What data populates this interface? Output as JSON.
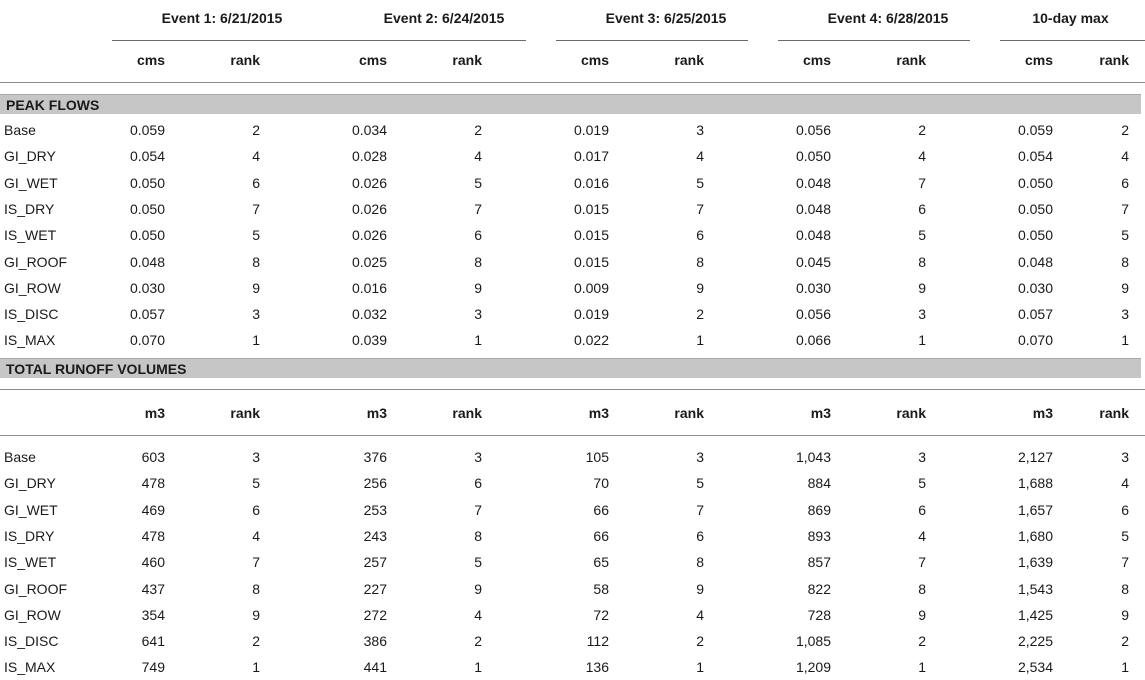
{
  "events": [
    {
      "title": "Event 1: 6/21/2015"
    },
    {
      "title": "Event 2: 6/24/2015"
    },
    {
      "title": "Event 3: 6/25/2015"
    },
    {
      "title": "Event 4: 6/28/2015"
    },
    {
      "title": "10-day max"
    }
  ],
  "peak": {
    "section_title": "PEAK FLOWS",
    "unit_label": "cms",
    "rank_label": "rank",
    "rows": [
      {
        "label": "Base",
        "cells": [
          "0.059",
          "2",
          "0.034",
          "2",
          "0.019",
          "3",
          "0.056",
          "2",
          "0.059",
          "2"
        ]
      },
      {
        "label": "GI_DRY",
        "cells": [
          "0.054",
          "4",
          "0.028",
          "4",
          "0.017",
          "4",
          "0.050",
          "4",
          "0.054",
          "4"
        ]
      },
      {
        "label": "GI_WET",
        "cells": [
          "0.050",
          "6",
          "0.026",
          "5",
          "0.016",
          "5",
          "0.048",
          "7",
          "0.050",
          "6"
        ]
      },
      {
        "label": "IS_DRY",
        "cells": [
          "0.050",
          "7",
          "0.026",
          "7",
          "0.015",
          "7",
          "0.048",
          "6",
          "0.050",
          "7"
        ]
      },
      {
        "label": "IS_WET",
        "cells": [
          "0.050",
          "5",
          "0.026",
          "6",
          "0.015",
          "6",
          "0.048",
          "5",
          "0.050",
          "5"
        ]
      },
      {
        "label": "GI_ROOF",
        "cells": [
          "0.048",
          "8",
          "0.025",
          "8",
          "0.015",
          "8",
          "0.045",
          "8",
          "0.048",
          "8"
        ]
      },
      {
        "label": "GI_ROW",
        "cells": [
          "0.030",
          "9",
          "0.016",
          "9",
          "0.009",
          "9",
          "0.030",
          "9",
          "0.030",
          "9"
        ]
      },
      {
        "label": "IS_DISC",
        "cells": [
          "0.057",
          "3",
          "0.032",
          "3",
          "0.019",
          "2",
          "0.056",
          "3",
          "0.057",
          "3"
        ]
      },
      {
        "label": "IS_MAX",
        "cells": [
          "0.070",
          "1",
          "0.039",
          "1",
          "0.022",
          "1",
          "0.066",
          "1",
          "0.070",
          "1"
        ]
      }
    ]
  },
  "volume": {
    "section_title": "TOTAL RUNOFF VOLUMES",
    "unit_label": "m3",
    "rank_label": "rank",
    "rows": [
      {
        "label": "Base",
        "cells": [
          "603",
          "3",
          "376",
          "3",
          "105",
          "3",
          "1,043",
          "3",
          "2,127",
          "3"
        ]
      },
      {
        "label": "GI_DRY",
        "cells": [
          "478",
          "5",
          "256",
          "6",
          "70",
          "5",
          "884",
          "5",
          "1,688",
          "4"
        ]
      },
      {
        "label": "GI_WET",
        "cells": [
          "469",
          "6",
          "253",
          "7",
          "66",
          "7",
          "869",
          "6",
          "1,657",
          "6"
        ]
      },
      {
        "label": "IS_DRY",
        "cells": [
          "478",
          "4",
          "243",
          "8",
          "66",
          "6",
          "893",
          "4",
          "1,680",
          "5"
        ]
      },
      {
        "label": "IS_WET",
        "cells": [
          "460",
          "7",
          "257",
          "5",
          "65",
          "8",
          "857",
          "7",
          "1,639",
          "7"
        ]
      },
      {
        "label": "GI_ROOF",
        "cells": [
          "437",
          "8",
          "227",
          "9",
          "58",
          "9",
          "822",
          "8",
          "1,543",
          "8"
        ]
      },
      {
        "label": "GI_ROW",
        "cells": [
          "354",
          "9",
          "272",
          "4",
          "72",
          "4",
          "728",
          "9",
          "1,425",
          "9"
        ]
      },
      {
        "label": "IS_DISC",
        "cells": [
          "641",
          "2",
          "386",
          "2",
          "112",
          "2",
          "1,085",
          "2",
          "2,225",
          "2"
        ]
      },
      {
        "label": "IS_MAX",
        "cells": [
          "749",
          "1",
          "441",
          "1",
          "136",
          "1",
          "1,209",
          "1",
          "2,534",
          "1"
        ]
      }
    ]
  }
}
